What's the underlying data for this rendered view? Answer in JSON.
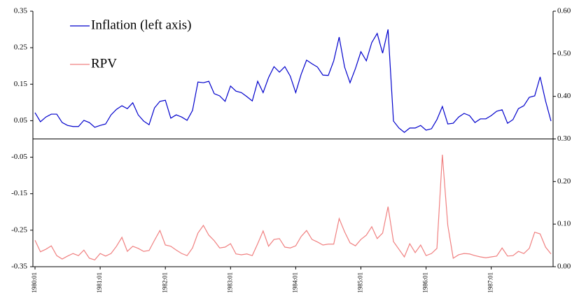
{
  "chart_data": {
    "type": "line",
    "categories": [
      "1980:01",
      null,
      null,
      null,
      null,
      null,
      null,
      null,
      null,
      null,
      null,
      null,
      "1981:01",
      null,
      null,
      null,
      null,
      null,
      null,
      null,
      null,
      null,
      null,
      null,
      "1982:01",
      null,
      null,
      null,
      null,
      null,
      null,
      null,
      null,
      null,
      null,
      null,
      "1983:01",
      null,
      null,
      null,
      null,
      null,
      null,
      null,
      null,
      null,
      null,
      null,
      "1984:01",
      null,
      null,
      null,
      null,
      null,
      null,
      null,
      null,
      null,
      null,
      null,
      "1985:01",
      null,
      null,
      null,
      null,
      null,
      null,
      null,
      null,
      null,
      null,
      null,
      "1986:01",
      null,
      null,
      null,
      null,
      null,
      null,
      null,
      null,
      null,
      null,
      null,
      "1987:01",
      null,
      null,
      null,
      null,
      null,
      null,
      null,
      null,
      null,
      null,
      null
    ],
    "series": [
      {
        "name": "Inflation (left axis)",
        "color": "#0000cc",
        "values": [
          0.072,
          0.047,
          0.06,
          0.068,
          0.068,
          0.045,
          0.037,
          0.034,
          0.034,
          0.051,
          0.045,
          0.032,
          0.037,
          0.041,
          0.066,
          0.081,
          0.091,
          0.083,
          0.099,
          0.066,
          0.049,
          0.039,
          0.085,
          0.103,
          0.106,
          0.057,
          0.066,
          0.06,
          0.051,
          0.078,
          0.156,
          0.154,
          0.158,
          0.124,
          0.118,
          0.103,
          0.145,
          0.131,
          0.127,
          0.116,
          0.104,
          0.158,
          0.127,
          0.168,
          0.198,
          0.183,
          0.198,
          0.172,
          0.127,
          0.177,
          0.216,
          0.206,
          0.197,
          0.175,
          0.174,
          0.214,
          0.279,
          0.197,
          0.154,
          0.193,
          0.239,
          0.214,
          0.264,
          0.289,
          0.235,
          0.3,
          0.049,
          0.03,
          0.018,
          0.03,
          0.03,
          0.037,
          0.024,
          0.028,
          0.053,
          0.089,
          0.041,
          0.043,
          0.06,
          0.07,
          0.064,
          0.045,
          0.055,
          0.055,
          0.064,
          0.076,
          0.08,
          0.043,
          0.053,
          0.083,
          0.091,
          0.114,
          0.118,
          0.17,
          0.104,
          0.049
        ]
      },
      {
        "name": "RPV",
        "color": "#f08080",
        "axis": "y2",
        "values": [
          0.062,
          0.035,
          0.041,
          0.049,
          0.026,
          0.018,
          0.025,
          0.031,
          0.026,
          0.039,
          0.02,
          0.016,
          0.031,
          0.025,
          0.031,
          0.048,
          0.069,
          0.036,
          0.048,
          0.043,
          0.036,
          0.038,
          0.062,
          0.085,
          0.051,
          0.048,
          0.039,
          0.031,
          0.026,
          0.044,
          0.079,
          0.097,
          0.074,
          0.061,
          0.044,
          0.046,
          0.054,
          0.03,
          0.028,
          0.03,
          0.026,
          0.054,
          0.084,
          0.048,
          0.064,
          0.066,
          0.046,
          0.044,
          0.049,
          0.071,
          0.085,
          0.064,
          0.058,
          0.051,
          0.053,
          0.053,
          0.113,
          0.082,
          0.056,
          0.049,
          0.064,
          0.074,
          0.094,
          0.066,
          0.079,
          0.141,
          0.059,
          0.041,
          0.023,
          0.054,
          0.033,
          0.051,
          0.026,
          0.031,
          0.043,
          0.263,
          0.097,
          0.02,
          0.028,
          0.031,
          0.03,
          0.026,
          0.023,
          0.021,
          0.023,
          0.025,
          0.044,
          0.025,
          0.026,
          0.036,
          0.031,
          0.043,
          0.081,
          0.077,
          0.046,
          0.03
        ]
      }
    ],
    "ylim": [
      -0.35,
      0.35
    ],
    "yticks": [
      0.35,
      0.25,
      0.15,
      0.05,
      -0.05,
      -0.15,
      -0.25,
      -0.35
    ],
    "y2lim": [
      0,
      0.6
    ],
    "y2ticks": [
      {
        "value": 0,
        "label": "0.00"
      },
      {
        "value": 0.1,
        "label": "0.10"
      },
      {
        "value": 0.2,
        "label": "0.20"
      },
      {
        "value": 0.3,
        "label": "0.30"
      },
      {
        "value": 0.4,
        "label": "0.40"
      },
      {
        "value": 0.5,
        "label": "0.50"
      },
      {
        "value": 0.6,
        "label": "0.60"
      }
    ],
    "legend": "upper-left"
  }
}
